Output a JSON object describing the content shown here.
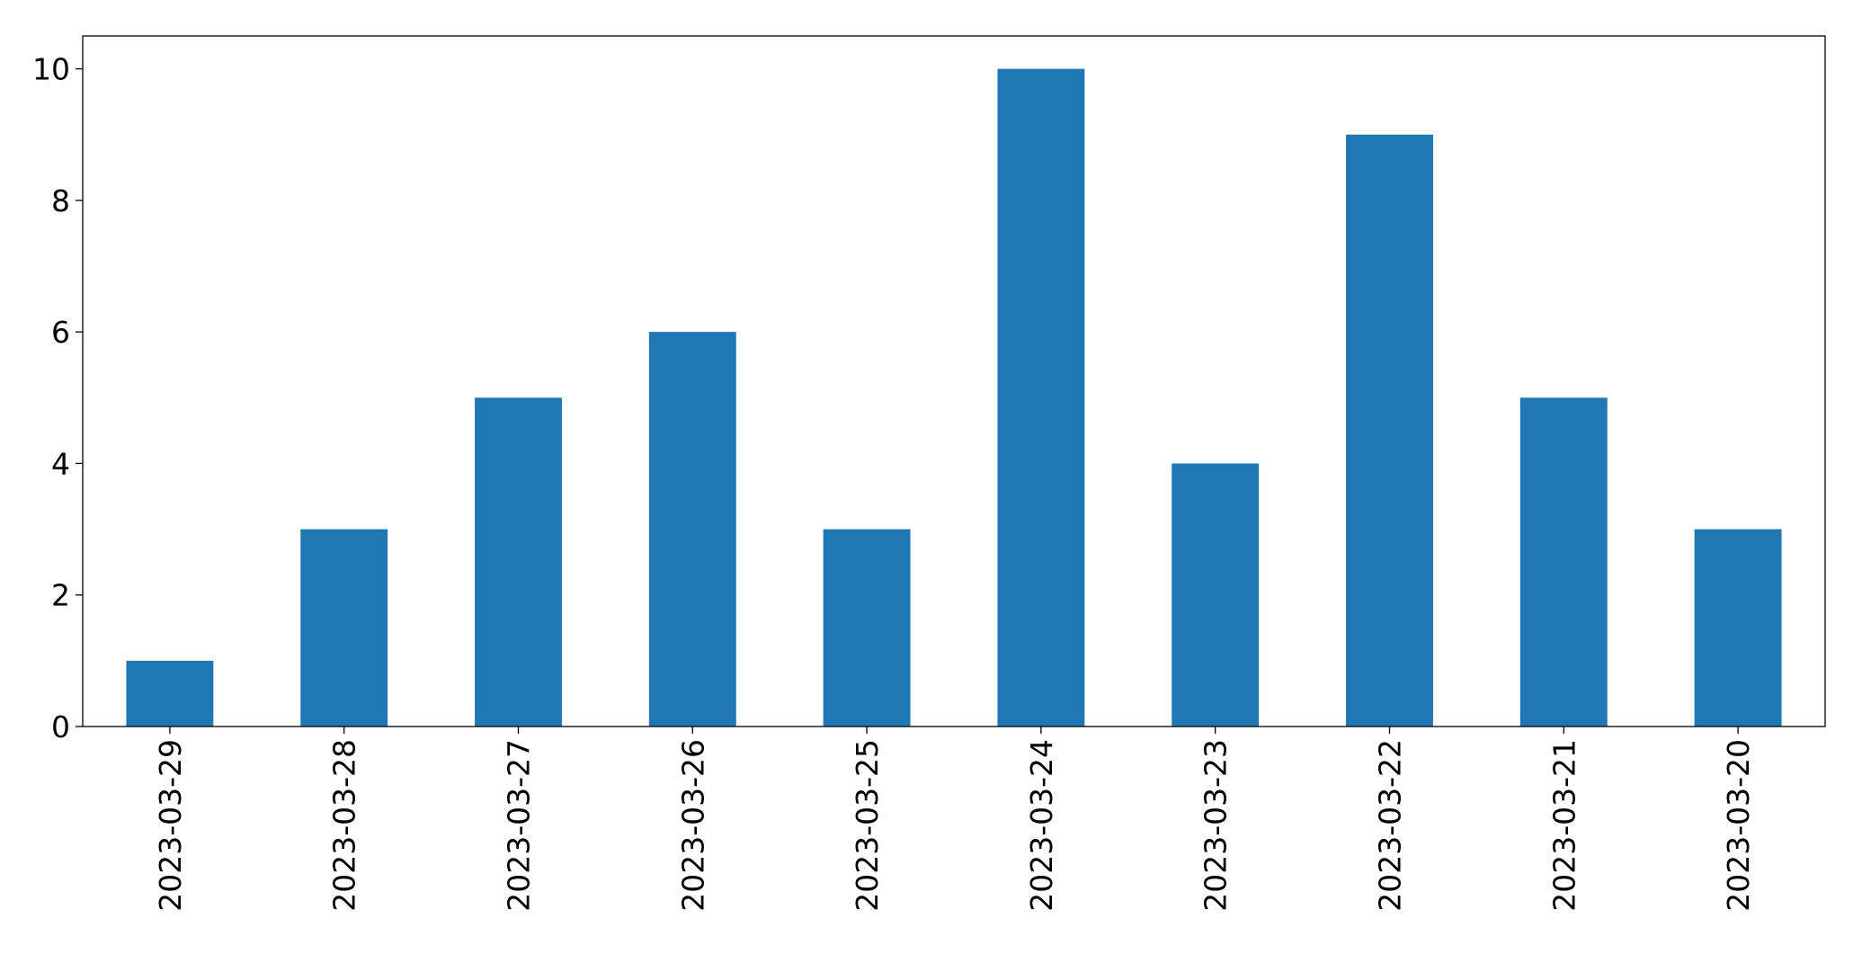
{
  "chart_data": {
    "type": "bar",
    "categories": [
      "2023-03-29",
      "2023-03-28",
      "2023-03-27",
      "2023-03-26",
      "2023-03-25",
      "2023-03-24",
      "2023-03-23",
      "2023-03-22",
      "2023-03-21",
      "2023-03-20"
    ],
    "values": [
      1,
      3,
      5,
      6,
      3,
      10,
      4,
      9,
      5,
      3
    ],
    "color": "#1f77b4",
    "ylim": [
      0,
      10.5
    ],
    "yticks": [
      0,
      2,
      4,
      6,
      8,
      10
    ],
    "grid": false
  }
}
